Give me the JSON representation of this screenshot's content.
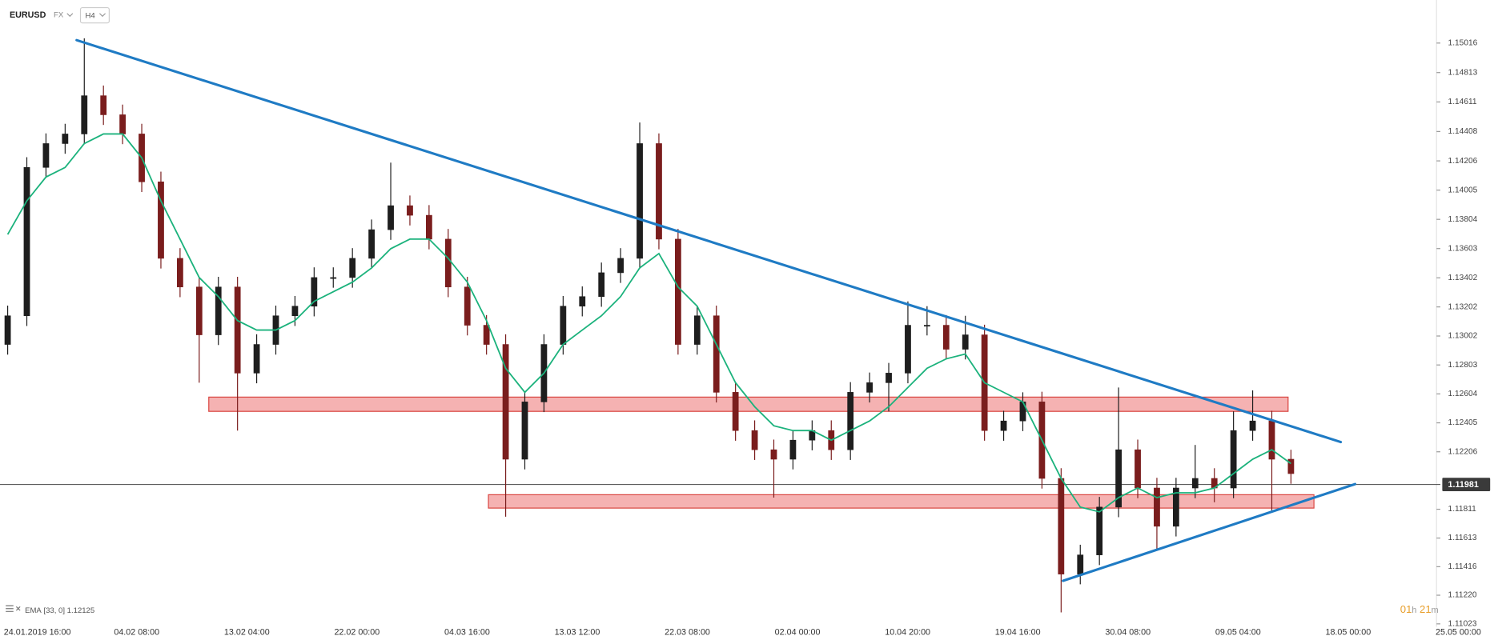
{
  "chart_data": {
    "type": "candlestick",
    "title": "EURUSD",
    "market": "FX",
    "timeframe": "H4",
    "up_color": "#1e1e1e",
    "down_color": "#7a1d1d",
    "open": [
      1.12944,
      1.13141,
      1.14161,
      1.14325,
      1.14391,
      1.14654,
      1.14523,
      1.14391,
      1.14062,
      1.13536,
      1.13339,
      1.1301,
      1.13339,
      1.12747,
      1.12944,
      1.13141,
      1.13207,
      1.13404,
      1.13404,
      1.13536,
      1.13733,
      1.13898,
      1.13832,
      1.13668,
      1.13339,
      1.13076,
      1.12944,
      1.12155,
      1.12549,
      1.12944,
      1.13207,
      1.13273,
      1.13437,
      1.13536,
      1.14325,
      1.13668,
      1.12944,
      1.13141,
      1.12615,
      1.12352,
      1.1222,
      1.12155,
      1.12286,
      1.12352,
      1.1222,
      1.12615,
      1.12681,
      1.12747,
      1.13076,
      1.13076,
      1.12911,
      1.1301,
      1.12352,
      1.12418,
      1.12549,
      1.12023,
      1.11365,
      1.11497,
      1.11826,
      1.1222,
      1.11957,
      1.11694,
      1.11957,
      1.12023,
      1.11957,
      1.12352,
      1.12418,
      1.12155
    ],
    "high": [
      1.13211,
      1.14231,
      1.14395,
      1.14461,
      1.15049,
      1.14724,
      1.14593,
      1.14461,
      1.14132,
      1.13606,
      1.13409,
      1.13409,
      1.13409,
      1.13014,
      1.13211,
      1.13277,
      1.13474,
      1.13474,
      1.13606,
      1.13803,
      1.14194,
      1.13968,
      1.13902,
      1.13738,
      1.13409,
      1.13146,
      1.13014,
      1.12619,
      1.13014,
      1.13277,
      1.13343,
      1.13507,
      1.13606,
      1.1447,
      1.14395,
      1.13738,
      1.13211,
      1.13211,
      1.12685,
      1.12422,
      1.1229,
      1.12356,
      1.12422,
      1.12422,
      1.12685,
      1.12751,
      1.12817,
      1.1324,
      1.13207,
      1.13146,
      1.13141,
      1.1308,
      1.12488,
      1.12615,
      1.12619,
      1.12093,
      1.11567,
      1.11896,
      1.12648,
      1.1229,
      1.12027,
      1.12027,
      1.12253,
      1.12093,
      1.12484,
      1.12628,
      1.12488,
      1.1222
    ],
    "low": [
      1.12874,
      1.13071,
      1.14091,
      1.14255,
      1.14321,
      1.14453,
      1.14321,
      1.13992,
      1.13466,
      1.13269,
      1.12681,
      1.1294,
      1.12352,
      1.12677,
      1.12874,
      1.13071,
      1.13137,
      1.13334,
      1.13334,
      1.13466,
      1.13663,
      1.13762,
      1.13598,
      1.13269,
      1.13006,
      1.12874,
      1.1176,
      1.12085,
      1.12479,
      1.12874,
      1.13137,
      1.13203,
      1.13367,
      1.13466,
      1.13598,
      1.12874,
      1.12874,
      1.12545,
      1.12282,
      1.1215,
      1.11891,
      1.12085,
      1.12216,
      1.1215,
      1.1215,
      1.12545,
      1.12484,
      1.12677,
      1.13006,
      1.12841,
      1.12841,
      1.12282,
      1.12282,
      1.12348,
      1.11953,
      1.11102,
      1.11295,
      1.11427,
      1.11756,
      1.11887,
      1.1153,
      1.11624,
      1.11887,
      1.11859,
      1.11887,
      1.12282,
      1.11793,
      1.11986
    ],
    "close": [
      1.13141,
      1.14161,
      1.14325,
      1.14391,
      1.14654,
      1.14523,
      1.14391,
      1.14062,
      1.13536,
      1.13339,
      1.1301,
      1.13339,
      1.12747,
      1.12944,
      1.13141,
      1.13207,
      1.13404,
      1.13404,
      1.13536,
      1.13733,
      1.13898,
      1.13832,
      1.13668,
      1.13339,
      1.13076,
      1.12944,
      1.12155,
      1.12549,
      1.12944,
      1.13207,
      1.13273,
      1.13437,
      1.13536,
      1.14325,
      1.13668,
      1.12944,
      1.13141,
      1.12615,
      1.12352,
      1.1222,
      1.12155,
      1.12286,
      1.12352,
      1.1222,
      1.12615,
      1.12681,
      1.12747,
      1.13076,
      1.13076,
      1.12911,
      1.1301,
      1.12352,
      1.12418,
      1.12549,
      1.12023,
      1.11365,
      1.11497,
      1.11826,
      1.1222,
      1.11957,
      1.11694,
      1.11957,
      1.12023,
      1.11957,
      1.12352,
      1.12418,
      1.12155,
      1.12056
    ],
    "ema": {
      "label": "EMA",
      "params": "[33, 0]",
      "value": 1.12125,
      "color": "#1bb27c",
      "values": [
        1.137,
        1.13931,
        1.14095,
        1.14161,
        1.14325,
        1.14391,
        1.14391,
        1.14227,
        1.13931,
        1.13668,
        1.13404,
        1.13273,
        1.13108,
        1.13043,
        1.13043,
        1.13108,
        1.1324,
        1.13306,
        1.13372,
        1.1347,
        1.13602,
        1.13668,
        1.13668,
        1.13536,
        1.13372,
        1.13108,
        1.1278,
        1.12615,
        1.12747,
        1.12944,
        1.13043,
        1.13141,
        1.13273,
        1.1347,
        1.13569,
        1.13339,
        1.13207,
        1.12944,
        1.12681,
        1.12516,
        1.12385,
        1.12352,
        1.12352,
        1.12286,
        1.12352,
        1.12418,
        1.12516,
        1.12648,
        1.1278,
        1.12845,
        1.12878,
        1.12681,
        1.12615,
        1.12549,
        1.12286,
        1.12023,
        1.11826,
        1.11793,
        1.11891,
        1.11957,
        1.11891,
        1.11924,
        1.11924,
        1.11957,
        1.12056,
        1.12155,
        1.1222,
        1.12125
      ]
    },
    "trendline_color": "#1f7bc4",
    "trendlines": [
      {
        "x": [
          3.6,
          69.6
        ],
        "y": [
          1.15036,
          1.12273
        ]
      },
      {
        "x": [
          55.1,
          70.35
        ],
        "y": [
          1.11319,
          1.11984
        ]
      }
    ],
    "zone_color": "#f3a4a4",
    "zone_border": "#d9443f",
    "zones": [
      {
        "x": [
          10.5,
          66.85
        ],
        "y": [
          1.12484,
          1.12582
        ]
      },
      {
        "x": [
          25.1,
          68.2
        ],
        "y": [
          1.11819,
          1.11911
        ]
      }
    ],
    "last_price": 1.11981,
    "xlim": [
      -0.4,
      74.6
    ],
    "ylim": [
      1.11003,
      1.15312
    ],
    "yticks": [
      1.15016,
      1.14813,
      1.14611,
      1.14408,
      1.14206,
      1.14005,
      1.13804,
      1.13603,
      1.13402,
      1.13202,
      1.13002,
      1.12803,
      1.12604,
      1.12405,
      1.12206,
      1.11811,
      1.11613,
      1.11416,
      {
        "value": 1.1122,
        "label": "1.11220"
      },
      1.11023
    ],
    "x_labels": [
      "24.01.2019  16:00",
      "04.02  08:00",
      "13.02  04:00",
      "22.02  00:00",
      "04.03  16:00",
      "13.03  12:00",
      "22.03  08:00",
      "02.04  00:00",
      "10.04  20:00",
      "19.04  16:00",
      "30.04  08:00",
      "09.05  04:00",
      "18.05  00:00",
      "25.05  00:00"
    ],
    "countdown": [
      "01",
      "h",
      "21",
      "m"
    ]
  }
}
